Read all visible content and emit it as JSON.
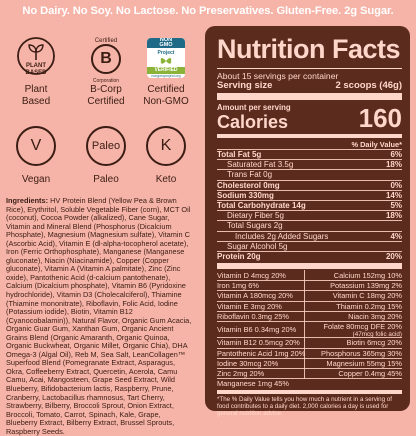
{
  "banner": {
    "text": "No Dairy. No Soy. No Lactose. No Preservatives. Gluten-Free. 2g Sugar."
  },
  "certifications": [
    {
      "label": "Plant\nBased",
      "icon": "plant-icon",
      "badge": "PLANT\nBASED"
    },
    {
      "label": "B-Corp\nCertified",
      "icon": "b-corp-icon",
      "badge_top": "Certified",
      "badge_bottom": "Corporation",
      "letter": "B"
    },
    {
      "label": "Certified\nNon-GMO",
      "icon": "non-gmo-icon",
      "badge_top": "NON\nGMO",
      "badge_mid": "Project",
      "badge_bottom": "VERIFIED",
      "badge_url": "nongmoproject.org"
    },
    {
      "label": "Vegan",
      "icon": "vegan-icon",
      "letter": "V"
    },
    {
      "label": "Paleo",
      "icon": "paleo-icon",
      "letter": "Paleo"
    },
    {
      "label": "Keto",
      "icon": "keto-icon",
      "letter": "K"
    }
  ],
  "ingredients": {
    "heading": "Ingredients:",
    "text": "HV Protein Blend (Yellow Pea & Brown Rice), Erythritol, Soluble Vegetable Fiber (corn), MCT Oil (coconut), Cocoa Powder (alkalized), Cane Sugar, Vitamin and Mineral Blend (Phosphorus (Dicalcium Phosphate), Magnesium (Magnesium sulfate), Vitamin C (Ascorbic Acid), Vitamin E (dl-alpha-tocopherol acetate), Iron (Ferric Orthophosphate), Manganese (Manganese gluconate), Niacin (Niacinamide), Copper (Copper gluconate), Vitamin A (Vitamin A palmitate), Zinc (Zinc oxide), Pantothenic Acid (d-calcium pantothenate), Calcium (Dicalcium phosphate), Vitamin B6 (Pyridoxine hydrochloride), Vitamin D3 (Cholecalciferol), Thiamine (Thiamine mononitrate), Riboflavin, Folic Acid, Iodine (Potassium iodide), Biotin, Vitamin B12 (Cyanocobalamin)), Natural Flavor, Organic Gum Acacia, Organic Guar Gum, Xanthan Gum, Organic Ancient Grains Blend (Organic Amaranth, Organic Quinoa, Organic Buckwheat, Organic Millet, Organic Chia), DHA Omega-3 (Algal Oil), Reb M, Sea Salt, LeanCollagen™ Superfood Blend (Pomegranate Extract, Asparagus, Okra, Coffeeberry Extract, Quercetin, Acerola, Camu Camu, Acai, Mangosteen, Grape Seed Extract, Wild Blueberry, Bifidobacterium lactis, Raspberry, Prune, Cranberry, Lactobacillus rhamnosus, Tart Cherry, Strawberry, Bilberry, Broccoli Sprout, Onion Extract, Broccoli, Tomato, Carrot, Spinach, Kale, Grape, Blueberry Extract, Bilberry Extract, Brussel Sprouts, Raspberry Seeds."
  },
  "nutrition": {
    "title": "Nutrition Facts",
    "servings_per_container": "About 15 servings per container",
    "serving_size_label": "Serving size",
    "serving_size_value": "2 scoops (46g)",
    "amount_per_serving": "Amount per serving",
    "calories_label": "Calories",
    "calories_value": "160",
    "daily_value_header": "% Daily Value*",
    "rows": [
      {
        "label": "Total Fat 5g",
        "dv": "6%",
        "bold": true
      },
      {
        "label": "Saturated Fat 3.5g",
        "dv": "18%",
        "indent": true
      },
      {
        "label": "Trans Fat 0g",
        "dv": "",
        "indent": true
      },
      {
        "label": "Cholesterol 0mg",
        "dv": "0%",
        "bold": true
      },
      {
        "label": "Sodium 330mg",
        "dv": "14%",
        "bold": true
      },
      {
        "label": "Total Carbohydrate 14g",
        "dv": "5%",
        "bold": true
      },
      {
        "label": "Dietary Fiber 5g",
        "dv": "18%",
        "indent": true
      },
      {
        "label": "Total Sugars 2g",
        "dv": "",
        "indent": true
      },
      {
        "label": "Includes 2g Added Sugars",
        "dv": "4%",
        "indent2": true
      },
      {
        "label": "Sugar Alcohol 5g",
        "dv": "",
        "indent": true
      },
      {
        "label": "Protein 20g",
        "dv": "20%",
        "bold": true
      }
    ],
    "vitamins": [
      [
        "Vitamin D 4mcg 20%",
        "Calcium 152mg 10%"
      ],
      [
        "Iron 1mg 6%",
        "Potassium 139mg 2%"
      ],
      [
        "Vitamin A 180mcg 20%",
        "Vitamin C 18mg 20%"
      ],
      [
        "Vitamin E 3mg 20%",
        "Thiamin 0.2mg 15%"
      ],
      [
        "Riboflavin 0.3mg 25%",
        "Niacin 3mg 20%"
      ],
      [
        "Vitamin B6 0.34mg 20%",
        "Folate 80mcg DFE 20%|(47mcg folic acid)"
      ],
      [
        "Vitamin B12 0.5mcg 20%",
        "Biotin 6mcg 20%"
      ],
      [
        "Pantothenic Acid 1mg 20%",
        "Phosphorus 365mg 30%"
      ],
      [
        "Iodine 30mcg 20%",
        "Magnesium 55mg 15%"
      ],
      [
        "Zinc 2mg 20%",
        "Copper 0.4mg 45%"
      ],
      [
        "Manganese 1mg 45%",
        ""
      ]
    ],
    "footnote": "*The % Daily Value tells you how much a nutrient in a serving of food contributes to a daily diet. 2,000 calories a day is used for general nutrition advice."
  },
  "colors": {
    "background": "#f6b4a8",
    "panel": "#5b2b1e",
    "panel_text": "#ffd7ca",
    "icon": "#3b1d14",
    "banner_text": "#ffffff"
  }
}
